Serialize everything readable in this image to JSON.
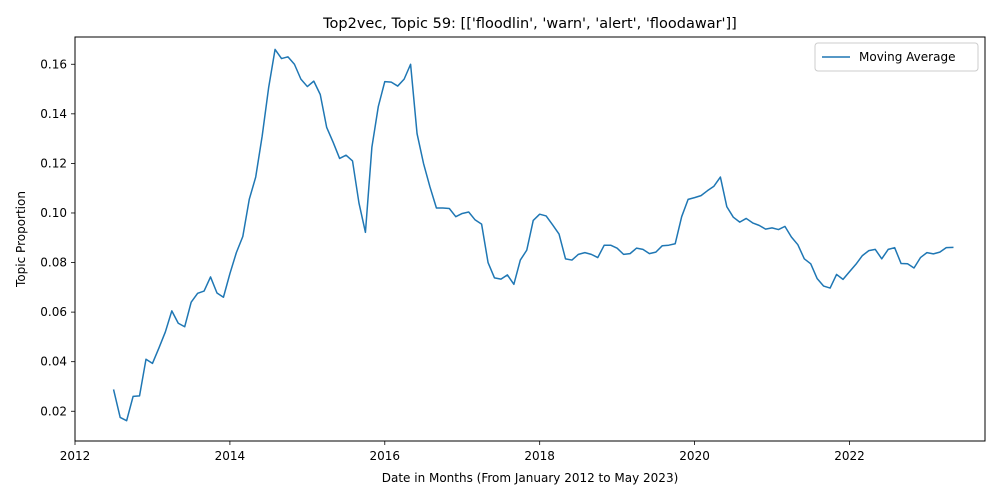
{
  "chart_data": {
    "type": "line",
    "title": "Top2vec, Topic 59: [['floodlin', 'warn', 'alert', 'floodawar']]",
    "xlabel": "Date in Months (From January 2012 to May 2023)",
    "ylabel": "Topic Proportion",
    "xlim": [
      "2012-01",
      "2023-10"
    ],
    "ylim": [
      0.008,
      0.171
    ],
    "x_ticks": [
      "2012",
      "2014",
      "2016",
      "2018",
      "2020",
      "2022"
    ],
    "y_ticks": [
      "0.02",
      "0.04",
      "0.06",
      "0.08",
      "0.10",
      "0.12",
      "0.14",
      "0.16"
    ],
    "grid": false,
    "legend_position": "top-right",
    "series": [
      {
        "name": "Moving Average",
        "color": "#1f77b4",
        "x": [
          "2012-07",
          "2012-08",
          "2012-09",
          "2012-10",
          "2012-11",
          "2012-12",
          "2013-01",
          "2013-02",
          "2013-03",
          "2013-04",
          "2013-05",
          "2013-06",
          "2013-07",
          "2013-08",
          "2013-09",
          "2013-10",
          "2013-11",
          "2013-12",
          "2014-01",
          "2014-02",
          "2014-03",
          "2014-04",
          "2014-05",
          "2014-06",
          "2014-07",
          "2014-08",
          "2014-09",
          "2014-10",
          "2014-11",
          "2014-12",
          "2015-01",
          "2015-02",
          "2015-03",
          "2015-04",
          "2015-05",
          "2015-06",
          "2015-07",
          "2015-08",
          "2015-09",
          "2015-10",
          "2015-11",
          "2015-12",
          "2016-01",
          "2016-02",
          "2016-03",
          "2016-04",
          "2016-05",
          "2016-06",
          "2016-07",
          "2016-08",
          "2016-09",
          "2016-10",
          "2016-11",
          "2016-12",
          "2017-01",
          "2017-02",
          "2017-03",
          "2017-04",
          "2017-05",
          "2017-06",
          "2017-07",
          "2017-08",
          "2017-09",
          "2017-10",
          "2017-11",
          "2017-12",
          "2018-01",
          "2018-02",
          "2018-03",
          "2018-04",
          "2018-05",
          "2018-06",
          "2018-07",
          "2018-08",
          "2018-09",
          "2018-10",
          "2018-11",
          "2018-12",
          "2019-01",
          "2019-02",
          "2019-03",
          "2019-04",
          "2019-05",
          "2019-06",
          "2019-07",
          "2019-08",
          "2019-09",
          "2019-10",
          "2019-11",
          "2019-12",
          "2020-01",
          "2020-02",
          "2020-03",
          "2020-04",
          "2020-05",
          "2020-06",
          "2020-07",
          "2020-08",
          "2020-09",
          "2020-10",
          "2020-11",
          "2020-12",
          "2021-01",
          "2021-02",
          "2021-03",
          "2021-04",
          "2021-05",
          "2021-06",
          "2021-07",
          "2021-08",
          "2021-09",
          "2021-10",
          "2021-11",
          "2021-12",
          "2022-01",
          "2022-02",
          "2022-03",
          "2022-04",
          "2022-05",
          "2022-06",
          "2022-07",
          "2022-08",
          "2022-09",
          "2022-10",
          "2022-11",
          "2022-12",
          "2023-01",
          "2023-02",
          "2023-03",
          "2023-04",
          "2023-05"
        ],
        "y": [
          0.0285,
          0.0175,
          0.0162,
          0.026,
          0.0262,
          0.041,
          0.0393,
          0.0455,
          0.052,
          0.0605,
          0.0555,
          0.0541,
          0.064,
          0.0676,
          0.0685,
          0.0742,
          0.0677,
          0.066,
          0.0755,
          0.084,
          0.0905,
          0.1055,
          0.1145,
          0.131,
          0.1505,
          0.166,
          0.1623,
          0.163,
          0.16,
          0.154,
          0.151,
          0.1532,
          0.1478,
          0.1345,
          0.1285,
          0.122,
          0.1233,
          0.121,
          0.104,
          0.0922,
          0.1265,
          0.143,
          0.153,
          0.1528,
          0.1512,
          0.154,
          0.16,
          0.132,
          0.12,
          0.1105,
          0.102,
          0.102,
          0.1018,
          0.0985,
          0.0998,
          0.1004,
          0.0972,
          0.0955,
          0.08,
          0.0738,
          0.0733,
          0.075,
          0.0712,
          0.081,
          0.085,
          0.097,
          0.0995,
          0.0988,
          0.0952,
          0.0915,
          0.0815,
          0.081,
          0.0833,
          0.084,
          0.0833,
          0.082,
          0.087,
          0.087,
          0.0858,
          0.0833,
          0.0836,
          0.0858,
          0.0853,
          0.0836,
          0.0842,
          0.0868,
          0.087,
          0.0876,
          0.0985,
          0.1055,
          0.1062,
          0.107,
          0.109,
          0.1108,
          0.1145,
          0.1025,
          0.0983,
          0.0963,
          0.0978,
          0.096,
          0.095,
          0.0935,
          0.094,
          0.0933,
          0.0946,
          0.0903,
          0.0872,
          0.0815,
          0.0795,
          0.0735,
          0.0705,
          0.0697,
          0.0752,
          0.0732,
          0.0763,
          0.0793,
          0.0828,
          0.0848,
          0.0853,
          0.0815,
          0.0853,
          0.086,
          0.0796,
          0.0795,
          0.0778,
          0.082,
          0.084,
          0.0835,
          0.0842,
          0.086,
          0.0861
        ]
      }
    ]
  }
}
